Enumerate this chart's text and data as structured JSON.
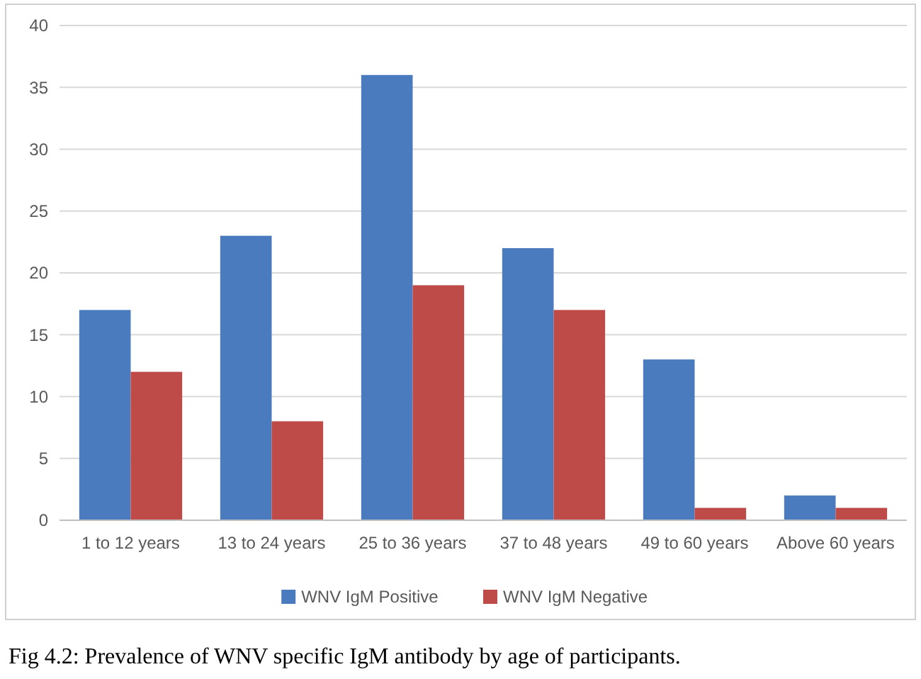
{
  "chart_data": {
    "type": "bar",
    "categories": [
      "1 to 12 years",
      "13 to 24 years",
      "25 to 36 years",
      "37 to 48 years",
      "49 to 60 years",
      "Above 60 years"
    ],
    "series": [
      {
        "name": "WNV IgM Positive",
        "color": "#4a7bbf",
        "values": [
          17,
          23,
          36,
          22,
          13,
          2
        ]
      },
      {
        "name": "WNV IgM Negative",
        "color": "#be4b48",
        "values": [
          12,
          8,
          19,
          17,
          1,
          1
        ]
      }
    ],
    "ylim": [
      0,
      40
    ],
    "yticks": [
      0,
      5,
      10,
      15,
      20,
      25,
      30,
      35,
      40
    ],
    "grid": "y",
    "legend": "bottom",
    "annotations": [
      "Fig 4.2: Prevalence of WNV specific IgM antibody by age of participants."
    ]
  }
}
